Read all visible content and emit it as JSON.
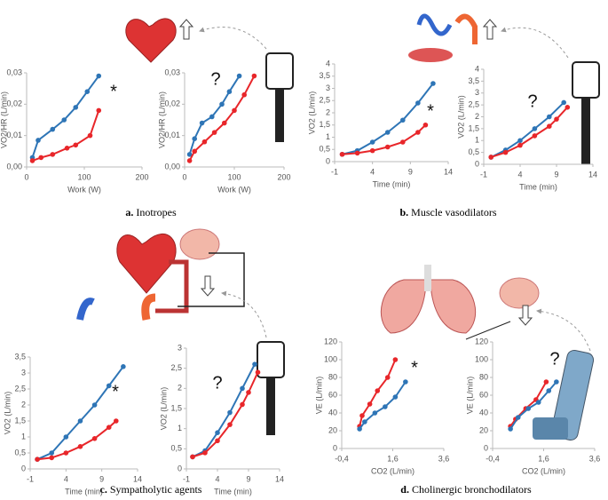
{
  "captions": [
    {
      "letter": "a.",
      "text": "Inotropes"
    },
    {
      "letter": "b.",
      "text": "Muscle vasodilators"
    },
    {
      "letter": "c.",
      "text": "Sympatholytic agents"
    },
    {
      "letter": "d.",
      "text": "Cholinergic bronchodilators"
    }
  ],
  "chart_data": [
    {
      "type": "line",
      "x_label": "Work (W)",
      "y_label": "VO2/HR (L/min)",
      "annotation": "*",
      "xlim": [
        0,
        200
      ],
      "xticks": [
        0,
        100,
        200
      ],
      "ylim": [
        0,
        0.03
      ],
      "yticks": [
        {
          "value": 0,
          "label": "0,00"
        },
        {
          "value": 0.01,
          "label": "0,01"
        },
        {
          "value": 0.02,
          "label": "0,02"
        },
        {
          "value": 0.03,
          "label": "0,03"
        }
      ],
      "series": [
        {
          "color": "#2e75b6",
          "x": [
            10,
            20,
            45,
            65,
            85,
            105,
            125
          ],
          "values": [
            0.003,
            0.0085,
            0.012,
            0.015,
            0.019,
            0.024,
            0.029
          ]
        },
        {
          "color": "#e8262a",
          "x": [
            10,
            25,
            45,
            70,
            85,
            110,
            125
          ],
          "values": [
            0.002,
            0.003,
            0.004,
            0.006,
            0.007,
            0.01,
            0.018
          ]
        }
      ]
    },
    {
      "type": "line",
      "x_label": "Work (W)",
      "y_label": "VO2/HR (L/min)",
      "annotation": "?",
      "xlim": [
        0,
        200
      ],
      "xticks": [
        0,
        100,
        200
      ],
      "ylim": [
        0,
        0.03
      ],
      "yticks": [
        {
          "value": 0,
          "label": "0,00"
        },
        {
          "value": 0.01,
          "label": "0,01"
        },
        {
          "value": 0.02,
          "label": "0,02"
        },
        {
          "value": 0.03,
          "label": "0,03"
        }
      ],
      "series": [
        {
          "color": "#2e75b6",
          "x": [
            10,
            20,
            35,
            55,
            75,
            90,
            110
          ],
          "values": [
            0.004,
            0.009,
            0.014,
            0.016,
            0.02,
            0.024,
            0.029
          ]
        },
        {
          "color": "#e8262a",
          "x": [
            10,
            20,
            40,
            60,
            80,
            100,
            120,
            140
          ],
          "values": [
            0.002,
            0.005,
            0.008,
            0.011,
            0.014,
            0.018,
            0.023,
            0.029
          ]
        }
      ]
    },
    {
      "type": "line",
      "x_label": "Time (min)",
      "y_label": "VO2 (L/min)",
      "annotation": "*",
      "xlim": [
        -1,
        14
      ],
      "xticks": [
        -1,
        4,
        9,
        14
      ],
      "ylim": [
        0,
        4
      ],
      "yticks": [
        0,
        {
          "value": 0.5,
          "label": "0,5"
        },
        1,
        {
          "value": 1.5,
          "label": "1,5"
        },
        2,
        {
          "value": 2.5,
          "label": "2,5"
        },
        3,
        {
          "value": 3.5,
          "label": "3,5"
        },
        4
      ],
      "series": [
        {
          "color": "#2e75b6",
          "x": [
            0,
            2,
            4,
            6,
            8,
            10,
            12
          ],
          "values": [
            0.3,
            0.45,
            0.8,
            1.2,
            1.7,
            2.4,
            3.2
          ]
        },
        {
          "color": "#e8262a",
          "x": [
            0,
            2,
            4,
            6,
            8,
            10,
            11
          ],
          "values": [
            0.3,
            0.35,
            0.45,
            0.6,
            0.8,
            1.2,
            1.5
          ]
        }
      ]
    },
    {
      "type": "line",
      "x_label": "Time (min)",
      "y_label": "VO2 (L/min)",
      "annotation": "?",
      "xlim": [
        -1,
        14
      ],
      "xticks": [
        -1,
        4,
        9,
        14
      ],
      "ylim": [
        0,
        4
      ],
      "yticks": [
        0,
        {
          "value": 0.5,
          "label": "0,5"
        },
        1,
        {
          "value": 1.5,
          "label": "1,5"
        },
        2,
        {
          "value": 2.5,
          "label": "2,5"
        },
        3,
        {
          "value": 3.5,
          "label": "3,5"
        },
        4
      ],
      "series": [
        {
          "color": "#2e75b6",
          "x": [
            0,
            2,
            4,
            6,
            8,
            10
          ],
          "values": [
            0.3,
            0.6,
            1.0,
            1.5,
            2.0,
            2.6
          ]
        },
        {
          "color": "#e8262a",
          "x": [
            0,
            2,
            4,
            6,
            8,
            9,
            10.5
          ],
          "values": [
            0.3,
            0.5,
            0.8,
            1.2,
            1.6,
            1.9,
            2.4
          ]
        }
      ]
    },
    {
      "type": "line",
      "x_label": "Time (min)",
      "y_label": "VO2 (L/min)",
      "annotation": "*",
      "xlim": [
        -1,
        14
      ],
      "xticks": [
        -1,
        4,
        9,
        14
      ],
      "ylim": [
        0,
        3.5
      ],
      "yticks": [
        0,
        {
          "value": 0.5,
          "label": "0,5"
        },
        1,
        {
          "value": 1.5,
          "label": "1,5"
        },
        2,
        {
          "value": 2.5,
          "label": "2,5"
        },
        3,
        {
          "value": 3.5,
          "label": "3,5"
        }
      ],
      "series": [
        {
          "color": "#2e75b6",
          "x": [
            0,
            2,
            4,
            6,
            8,
            10,
            12
          ],
          "values": [
            0.3,
            0.5,
            1.0,
            1.5,
            2.0,
            2.6,
            3.2
          ]
        },
        {
          "color": "#e8262a",
          "x": [
            0,
            2,
            4,
            6,
            8,
            10,
            11
          ],
          "values": [
            0.3,
            0.35,
            0.5,
            0.7,
            0.95,
            1.3,
            1.5
          ]
        }
      ]
    },
    {
      "type": "line",
      "x_label": "Time (min)",
      "y_label": "VO2 (L/min)",
      "annotation": "?",
      "xlim": [
        -1,
        14
      ],
      "xticks": [
        -1,
        4,
        9,
        14
      ],
      "ylim": [
        0,
        3
      ],
      "yticks": [
        0,
        {
          "value": 0.5,
          "label": "0,5"
        },
        1,
        {
          "value": 1.5,
          "label": "1,5"
        },
        2,
        {
          "value": 2.5,
          "label": "2,5"
        },
        3
      ],
      "series": [
        {
          "color": "#2e75b6",
          "x": [
            0,
            2,
            4,
            6,
            8,
            10
          ],
          "values": [
            0.3,
            0.45,
            0.9,
            1.4,
            2.0,
            2.6
          ]
        },
        {
          "color": "#e8262a",
          "x": [
            0,
            2,
            4,
            6,
            8,
            9,
            10.5
          ],
          "values": [
            0.3,
            0.4,
            0.7,
            1.1,
            1.6,
            1.9,
            2.4
          ]
        }
      ]
    },
    {
      "type": "line",
      "x_label": "CO2 (L/min)",
      "y_label": "VE (L/min)",
      "annotation": "*",
      "xlim": [
        -0.4,
        3.6
      ],
      "xticks": [
        {
          "value": -0.4,
          "label": "-0,4"
        },
        {
          "value": 1.6,
          "label": "1,6"
        },
        {
          "value": 3.6,
          "label": "3,6"
        }
      ],
      "ylim": [
        0,
        120
      ],
      "yticks": [
        0,
        20,
        40,
        60,
        80,
        100,
        120
      ],
      "series": [
        {
          "color": "#e8262a",
          "x": [
            0.3,
            0.4,
            0.7,
            1.0,
            1.4,
            1.7
          ],
          "values": [
            25,
            37,
            50,
            65,
            80,
            100
          ]
        },
        {
          "color": "#2e75b6",
          "x": [
            0.3,
            0.5,
            0.9,
            1.3,
            1.7,
            2.1
          ],
          "values": [
            22,
            30,
            40,
            47,
            58,
            75
          ]
        }
      ]
    },
    {
      "type": "line",
      "x_label": "CO2 (L/min)",
      "y_label": "VE (L/min)",
      "annotation": "?",
      "xlim": [
        -0.4,
        3.6
      ],
      "xticks": [
        {
          "value": -0.4,
          "label": "-0,4"
        },
        {
          "value": 1.6,
          "label": "1,6"
        },
        {
          "value": 3.6,
          "label": "3,6"
        }
      ],
      "ylim": [
        0,
        120
      ],
      "yticks": [
        0,
        20,
        40,
        60,
        80,
        100,
        120
      ],
      "series": [
        {
          "color": "#e8262a",
          "x": [
            0.3,
            0.5,
            0.9,
            1.3,
            1.7
          ],
          "values": [
            25,
            33,
            45,
            55,
            75
          ]
        },
        {
          "color": "#2e75b6",
          "x": [
            0.3,
            0.6,
            1.0,
            1.4,
            1.8,
            2.1
          ],
          "values": [
            22,
            35,
            45,
            52,
            65,
            75
          ]
        }
      ]
    }
  ]
}
